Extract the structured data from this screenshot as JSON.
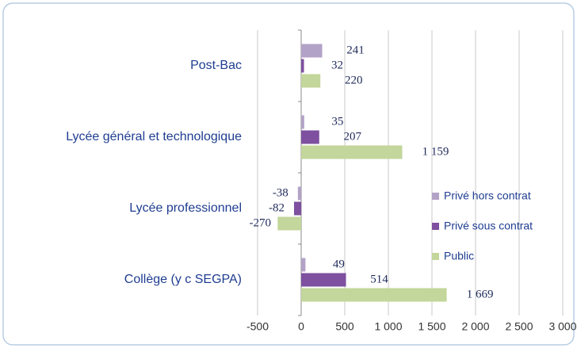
{
  "chart_data": {
    "type": "bar",
    "orientation": "horizontal",
    "categories": [
      "Post-Bac",
      "Lycée général et technologique",
      "Lycée professionnel",
      "Collège (y c SEGPA)"
    ],
    "series": [
      {
        "name": "Privé hors contrat",
        "color": "#b3a2c7",
        "values": [
          241,
          35,
          -38,
          49
        ]
      },
      {
        "name": "Privé sous contrat",
        "color": "#7e509f",
        "values": [
          32,
          207,
          -82,
          514
        ]
      },
      {
        "name": "Public",
        "color": "#c3d69b",
        "values": [
          220,
          1159,
          -270,
          1669
        ],
        "value_labels": [
          "220",
          "1 159",
          "-270",
          "1 669"
        ]
      }
    ],
    "xlim": [
      -500,
      3000
    ],
    "xticks": [
      -500,
      0,
      500,
      {
        "value": 1000,
        "label": "1 000"
      },
      {
        "value": 1500,
        "label": "1 500"
      },
      {
        "value": 2000,
        "label": "2 000"
      },
      {
        "value": 2500,
        "label": "2 500"
      },
      {
        "value": 3000,
        "label": "3 000"
      }
    ],
    "grid": true,
    "legend": "right"
  }
}
